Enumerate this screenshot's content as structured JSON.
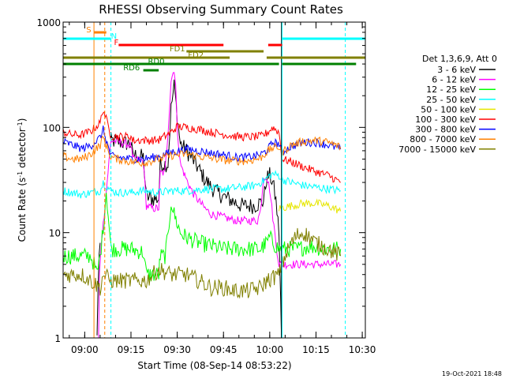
{
  "chart_data": {
    "type": "line",
    "title": "RHESSI Observing Summary Count Rates",
    "xlabel": "Start Time (08-Sep-14 08:53:22)",
    "ylabel_main": "Count Rate (s",
    "ylabel_sup1": "-1",
    "ylabel_mid": " detector",
    "ylabel_sup2": "-1",
    "ylabel_end": ")",
    "y_log": true,
    "xlim_min": [
      0,
      98
    ],
    "ylim": [
      1,
      1000
    ],
    "x_ticks": [
      {
        "min": 7,
        "label": "09:00"
      },
      {
        "min": 22,
        "label": "09:15"
      },
      {
        "min": 37,
        "label": "09:30"
      },
      {
        "min": 52,
        "label": "09:45"
      },
      {
        "min": 67,
        "label": "10:00"
      },
      {
        "min": 82,
        "label": "10:15"
      },
      {
        "min": 97,
        "label": "10:30"
      }
    ],
    "y_ticks": [
      {
        "value": 1,
        "label": "1"
      },
      {
        "value": 10,
        "label": "10"
      },
      {
        "value": 100,
        "label": "100"
      },
      {
        "value": 1000,
        "label": "1000"
      }
    ],
    "legend_header": "Det 1,3,6,9, Att 0",
    "legend_placement": "right",
    "series": [
      {
        "name": "3 - 6 keV",
        "color": "#000000",
        "points": [
          [
            11.0,
            1.0
          ],
          [
            11.3,
            3.0
          ],
          [
            11.7,
            6.0
          ],
          [
            12.0,
            8.0
          ],
          [
            15.5,
            75
          ],
          [
            18,
            73
          ],
          [
            20,
            71
          ],
          [
            22,
            70
          ],
          [
            22.5,
            55
          ],
          [
            26,
            52
          ],
          [
            27,
            22
          ],
          [
            29,
            21
          ],
          [
            31,
            21
          ],
          [
            31.5,
            45
          ],
          [
            34,
            45
          ],
          [
            35,
            150
          ],
          [
            36,
            250
          ],
          [
            37,
            130
          ],
          [
            38,
            70
          ],
          [
            40,
            60
          ],
          [
            42,
            50
          ],
          [
            44,
            40
          ],
          [
            46,
            32
          ],
          [
            48,
            27
          ],
          [
            50,
            24
          ],
          [
            52,
            22
          ],
          [
            55,
            20
          ],
          [
            58,
            18
          ],
          [
            62,
            18
          ],
          [
            65,
            20
          ],
          [
            66,
            33
          ],
          [
            67,
            35
          ],
          [
            68,
            30
          ],
          [
            69,
            20
          ],
          [
            70,
            10
          ],
          [
            70.8,
            1.0
          ]
        ]
      },
      {
        "name": "6 - 12 keV",
        "color": "#ff00ff",
        "points": [
          [
            11.5,
            1.0
          ],
          [
            11.8,
            4.0
          ],
          [
            12.5,
            9.0
          ],
          [
            13,
            12.0
          ],
          [
            15.5,
            75
          ],
          [
            18,
            73
          ],
          [
            20,
            70
          ],
          [
            22,
            68
          ],
          [
            22.5,
            50
          ],
          [
            26,
            48
          ],
          [
            27,
            18
          ],
          [
            29,
            17
          ],
          [
            31,
            17
          ],
          [
            31.5,
            37
          ],
          [
            33,
            37
          ],
          [
            34,
            90
          ],
          [
            35,
            280
          ],
          [
            36,
            360
          ],
          [
            36.5,
            250
          ],
          [
            37,
            100
          ],
          [
            38,
            45
          ],
          [
            40,
            32
          ],
          [
            42,
            24
          ],
          [
            44,
            20
          ],
          [
            46,
            17
          ],
          [
            48,
            15
          ],
          [
            52,
            14
          ],
          [
            56,
            13
          ],
          [
            60,
            13
          ],
          [
            63,
            13
          ],
          [
            64,
            16
          ],
          [
            65,
            34
          ],
          [
            66,
            34
          ],
          [
            67,
            26
          ],
          [
            68,
            14
          ],
          [
            69,
            8
          ],
          [
            70,
            5
          ],
          [
            72,
            5
          ],
          [
            75,
            5
          ],
          [
            80,
            5
          ],
          [
            85,
            5
          ],
          [
            90,
            5
          ]
        ]
      },
      {
        "name": "12 - 25 keV",
        "color": "#00ff00",
        "points": [
          [
            0,
            6
          ],
          [
            3,
            6
          ],
          [
            5,
            6
          ],
          [
            7,
            6
          ],
          [
            8,
            6
          ],
          [
            9,
            6
          ],
          [
            10,
            5
          ],
          [
            11,
            4
          ],
          [
            12,
            6
          ],
          [
            13,
            11
          ],
          [
            14,
            25
          ],
          [
            15.5,
            7
          ],
          [
            18,
            7
          ],
          [
            20,
            7
          ],
          [
            22,
            7
          ],
          [
            26,
            6.5
          ],
          [
            27,
            4
          ],
          [
            31,
            4
          ],
          [
            31.5,
            6
          ],
          [
            33,
            6
          ],
          [
            34,
            9
          ],
          [
            35,
            20
          ],
          [
            36,
            15
          ],
          [
            38,
            10
          ],
          [
            40,
            9
          ],
          [
            44,
            8
          ],
          [
            48,
            7.5
          ],
          [
            52,
            7
          ],
          [
            56,
            7
          ],
          [
            60,
            7
          ],
          [
            64,
            7
          ],
          [
            66,
            8
          ],
          [
            67,
            9
          ],
          [
            68,
            8
          ],
          [
            70,
            7
          ],
          [
            73,
            7
          ],
          [
            76,
            7
          ],
          [
            80,
            7.5
          ],
          [
            85,
            7
          ],
          [
            90,
            7
          ]
        ]
      },
      {
        "name": "25 - 50 keV",
        "color": "#00ffff",
        "points": [
          [
            0,
            25
          ],
          [
            3,
            24
          ],
          [
            6,
            23
          ],
          [
            9,
            24
          ],
          [
            12,
            25
          ],
          [
            13,
            30
          ],
          [
            15.5,
            25
          ],
          [
            18,
            24
          ],
          [
            22,
            24
          ],
          [
            26,
            25
          ],
          [
            31,
            24
          ],
          [
            35,
            25
          ],
          [
            40,
            25
          ],
          [
            46,
            26
          ],
          [
            52,
            26
          ],
          [
            58,
            27
          ],
          [
            62,
            28
          ],
          [
            65,
            31
          ],
          [
            67,
            35
          ],
          [
            68,
            36
          ],
          [
            70,
            35
          ],
          [
            71,
            32
          ],
          [
            74,
            30
          ],
          [
            78,
            28
          ],
          [
            82,
            27
          ],
          [
            86,
            26
          ],
          [
            90,
            25
          ]
        ]
      },
      {
        "name": "50 - 100 keV",
        "color": "#e6e600",
        "points": [
          [
            70,
            17
          ],
          [
            74,
            18
          ],
          [
            78,
            19
          ],
          [
            82,
            19
          ],
          [
            86,
            18
          ],
          [
            90,
            16
          ]
        ]
      },
      {
        "name": "100 - 300 keV",
        "color": "#ff0000",
        "points": [
          [
            0,
            90
          ],
          [
            3,
            85
          ],
          [
            6,
            85
          ],
          [
            9,
            92
          ],
          [
            12,
            110
          ],
          [
            13,
            150
          ],
          [
            15.5,
            83
          ],
          [
            18,
            82
          ],
          [
            20,
            82
          ],
          [
            22,
            82
          ],
          [
            22.5,
            75
          ],
          [
            26,
            76
          ],
          [
            27,
            75
          ],
          [
            31,
            76
          ],
          [
            35,
            90
          ],
          [
            37,
            102
          ],
          [
            40,
            100
          ],
          [
            44,
            96
          ],
          [
            48,
            90
          ],
          [
            52,
            86
          ],
          [
            56,
            82
          ],
          [
            60,
            81
          ],
          [
            64,
            82
          ],
          [
            66,
            88
          ],
          [
            68,
            100
          ],
          [
            70,
            90
          ],
          [
            71,
            50
          ],
          [
            74,
            47
          ],
          [
            78,
            42
          ],
          [
            82,
            38
          ],
          [
            86,
            35
          ],
          [
            90,
            30
          ]
        ]
      },
      {
        "name": "300 - 800 keV",
        "color": "#0000ff",
        "points": [
          [
            0,
            73
          ],
          [
            3,
            68
          ],
          [
            6,
            63
          ],
          [
            9,
            67
          ],
          [
            12,
            80
          ],
          [
            13,
            95
          ],
          [
            15.5,
            53
          ],
          [
            18,
            52
          ],
          [
            22,
            50
          ],
          [
            26,
            50
          ],
          [
            31,
            53
          ],
          [
            35,
            58
          ],
          [
            40,
            62
          ],
          [
            44,
            60
          ],
          [
            48,
            57
          ],
          [
            52,
            55
          ],
          [
            56,
            52
          ],
          [
            60,
            52
          ],
          [
            64,
            55
          ],
          [
            66,
            60
          ],
          [
            68,
            72
          ],
          [
            70,
            70
          ],
          [
            71,
            58
          ],
          [
            74,
            66
          ],
          [
            78,
            72
          ],
          [
            82,
            72
          ],
          [
            86,
            68
          ],
          [
            90,
            62
          ]
        ]
      },
      {
        "name": "800 - 7000 keV",
        "color": "#ff8000",
        "points": [
          [
            0,
            53
          ],
          [
            3,
            50
          ],
          [
            6,
            50
          ],
          [
            9,
            56
          ],
          [
            12,
            68
          ],
          [
            13,
            80
          ],
          [
            15.5,
            52
          ],
          [
            18,
            50
          ],
          [
            22,
            47
          ],
          [
            26,
            46
          ],
          [
            31,
            50
          ],
          [
            35,
            54
          ],
          [
            40,
            56
          ],
          [
            44,
            53
          ],
          [
            48,
            51
          ],
          [
            52,
            49
          ],
          [
            56,
            48
          ],
          [
            60,
            48
          ],
          [
            64,
            51
          ],
          [
            66,
            58
          ],
          [
            68,
            64
          ],
          [
            70,
            65
          ],
          [
            71,
            58
          ],
          [
            74,
            68
          ],
          [
            78,
            74
          ],
          [
            82,
            75
          ],
          [
            86,
            72
          ],
          [
            90,
            65
          ]
        ]
      },
      {
        "name": "7000 - 15000 keV",
        "color": "#808000",
        "points": [
          [
            0,
            4
          ],
          [
            3,
            4
          ],
          [
            6,
            4
          ],
          [
            9,
            3.5
          ],
          [
            12,
            3
          ],
          [
            13,
            4
          ],
          [
            15.5,
            3.5
          ],
          [
            18,
            3.5
          ],
          [
            22,
            3.5
          ],
          [
            26,
            3.5
          ],
          [
            27,
            3.5
          ],
          [
            31,
            4.5
          ],
          [
            35,
            4
          ],
          [
            40,
            4
          ],
          [
            44,
            3.5
          ],
          [
            48,
            3
          ],
          [
            52,
            3
          ],
          [
            56,
            2.8
          ],
          [
            60,
            2.8
          ],
          [
            64,
            3
          ],
          [
            66,
            3.5
          ],
          [
            70,
            4
          ],
          [
            72,
            6
          ],
          [
            74,
            8
          ],
          [
            76,
            9.5
          ],
          [
            78,
            10
          ],
          [
            80,
            9
          ],
          [
            82,
            8
          ],
          [
            86,
            7
          ],
          [
            90,
            6
          ]
        ]
      }
    ],
    "verticals": [
      {
        "min": 0,
        "color": "#00ffff",
        "dash": false
      },
      {
        "min": 10,
        "color": "#ff8000",
        "dash": false
      },
      {
        "min": 13.5,
        "color": "#ff8000",
        "dash": true
      },
      {
        "min": 15.5,
        "color": "#00ffff",
        "dash": true
      },
      {
        "min": 70.8,
        "color": "#000000",
        "dash": false
      },
      {
        "min": 71,
        "color": "#00ffff",
        "dash": false
      },
      {
        "min": 91.5,
        "color": "#00ffff",
        "dash": true
      }
    ],
    "flags": [
      {
        "label": "S",
        "color": "#ff8000",
        "label_at": 7.5,
        "label_y": 1,
        "segments": [
          [
            10,
            14
          ]
        ],
        "row": 1
      },
      {
        "label": "N",
        "color": "#00ffff",
        "label_at": 15.5,
        "label_y": 2,
        "segments": [
          [
            0,
            15.5
          ],
          [
            71,
            98
          ]
        ],
        "row": 2
      },
      {
        "label": "F",
        "color": "#ff0000",
        "label_at": 16.5,
        "label_y": 3,
        "segments": [
          [
            18,
            52
          ],
          [
            66.5,
            71
          ]
        ],
        "row": 3
      },
      {
        "label": "FD1",
        "color": "#808000",
        "label_at": 34.5,
        "label_y": 4,
        "segments": [
          [
            40,
            65
          ]
        ],
        "row": 4
      },
      {
        "label": "FD2",
        "color": "#808000",
        "label_at": 40.5,
        "label_y": 5,
        "segments": [
          [
            0,
            54
          ],
          [
            66,
            98
          ]
        ],
        "row": 5
      },
      {
        "label": "RD0",
        "color": "#008000",
        "label_at": 27.5,
        "label_y": 6,
        "segments": [
          [
            0,
            70
          ],
          [
            71,
            95
          ]
        ],
        "row": 6
      },
      {
        "label": "RD6",
        "color": "#008000",
        "label_at": 19.5,
        "label_y": 7,
        "segments": [
          [
            26,
            31
          ]
        ],
        "row": 7
      }
    ]
  },
  "timestamp": "19-Oct-2021 18:48"
}
